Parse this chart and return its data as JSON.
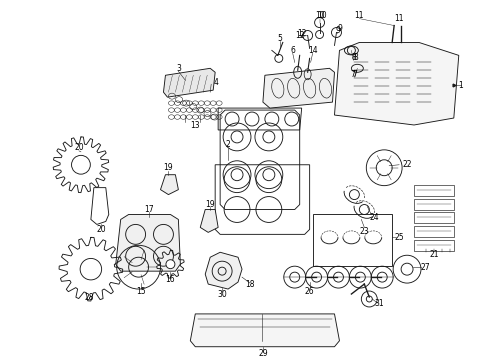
{
  "background_color": "#ffffff",
  "line_color": "#1a1a1a",
  "fig_width": 4.9,
  "fig_height": 3.6,
  "dpi": 100,
  "label_fs": 5.5,
  "lw": 0.65
}
